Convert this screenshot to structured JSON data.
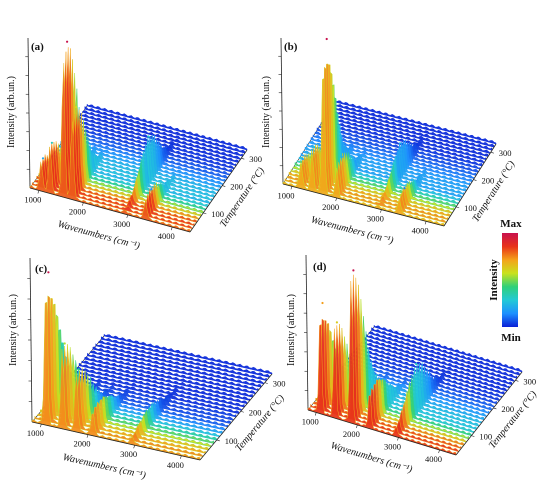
{
  "chart_data": [
    {
      "type": "surface3d",
      "panel": "(a)",
      "zlabel": "Intensity (arb.un.)",
      "xlabel": "Wavenumbers (cm⁻¹)",
      "ylabel": "Temperature (°C)",
      "x_ticks": [
        "1000",
        "2000",
        "3000",
        "4000"
      ],
      "y_ticks": [
        "100",
        "200",
        "300"
      ],
      "xlim": [
        800,
        4400
      ],
      "ylim": [
        30,
        330
      ],
      "peaks": [
        {
          "wavenumber": 1050,
          "temperature": 40,
          "intensity": 0.2
        },
        {
          "wavenumber": 1250,
          "temperature": 40,
          "intensity": 0.32
        },
        {
          "wavenumber": 1550,
          "temperature": 50,
          "intensity": 1.0
        },
        {
          "wavenumber": 1750,
          "temperature": 50,
          "intensity": 0.58
        },
        {
          "wavenumber": 2950,
          "temperature": 150,
          "intensity": 0.3
        },
        {
          "wavenumber": 3400,
          "temperature": 60,
          "intensity": 0.15
        }
      ]
    },
    {
      "type": "surface3d",
      "panel": "(b)",
      "zlabel": "Intensity (arb.un.)",
      "xlabel": "Wavenumbers (cm⁻¹)",
      "ylabel": "Temperature (°C)",
      "x_ticks": [
        "1000",
        "2000",
        "3000",
        "4000"
      ],
      "y_ticks": [
        "100",
        "200",
        "300"
      ],
      "xlim": [
        800,
        4400
      ],
      "ylim": [
        30,
        330
      ],
      "peaks": [
        {
          "wavenumber": 1200,
          "temperature": 40,
          "intensity": 0.18
        },
        {
          "wavenumber": 1450,
          "temperature": 40,
          "intensity": 0.28
        },
        {
          "wavenumber": 1700,
          "temperature": 50,
          "intensity": 1.0
        },
        {
          "wavenumber": 2000,
          "temperature": 60,
          "intensity": 0.22
        },
        {
          "wavenumber": 2950,
          "temperature": 150,
          "intensity": 0.22
        },
        {
          "wavenumber": 3400,
          "temperature": 60,
          "intensity": 0.12
        }
      ]
    },
    {
      "type": "surface3d",
      "panel": "(c)",
      "zlabel": "Intensity (arb.un.)",
      "xlabel": "Wavenumbers (cm⁻¹)",
      "ylabel": "Temperature (°C)",
      "x_ticks": [
        "1000",
        "2000",
        "3000",
        "4000"
      ],
      "y_ticks": [
        "100",
        "200",
        "300"
      ],
      "xlim": [
        800,
        4400
      ],
      "ylim": [
        30,
        330
      ],
      "peaks": [
        {
          "wavenumber": 1100,
          "temperature": 40,
          "intensity": 1.0
        },
        {
          "wavenumber": 1450,
          "temperature": 40,
          "intensity": 0.55
        },
        {
          "wavenumber": 1750,
          "temperature": 40,
          "intensity": 0.4
        },
        {
          "wavenumber": 2100,
          "temperature": 60,
          "intensity": 0.2
        },
        {
          "wavenumber": 2950,
          "temperature": 100,
          "intensity": 0.12
        }
      ]
    },
    {
      "type": "surface3d",
      "panel": "(d)",
      "zlabel": "Intensity (arb.un.)",
      "xlabel": "Wavenumbers (cm⁻¹)",
      "ylabel": "Temperature (°C)",
      "x_ticks": [
        "1000",
        "2000",
        "3000",
        "4000"
      ],
      "y_ticks": [
        "100",
        "200",
        "300"
      ],
      "xlim": [
        800,
        4400
      ],
      "ylim": [
        30,
        330
      ],
      "peaks": [
        {
          "wavenumber": 1100,
          "temperature": 40,
          "intensity": 0.72
        },
        {
          "wavenumber": 1450,
          "temperature": 40,
          "intensity": 0.62
        },
        {
          "wavenumber": 1850,
          "temperature": 40,
          "intensity": 1.0
        },
        {
          "wavenumber": 2300,
          "temperature": 60,
          "intensity": 0.3
        },
        {
          "wavenumber": 2950,
          "temperature": 120,
          "intensity": 0.32
        }
      ]
    }
  ],
  "colorbar": {
    "title": "Intensity",
    "max_label": "Max",
    "min_label": "Min",
    "colors": [
      "#0a1fd6",
      "#1e90ff",
      "#22c9d6",
      "#2fd07a",
      "#c8e21e",
      "#f4a21b",
      "#e8321a",
      "#c8124e"
    ]
  }
}
